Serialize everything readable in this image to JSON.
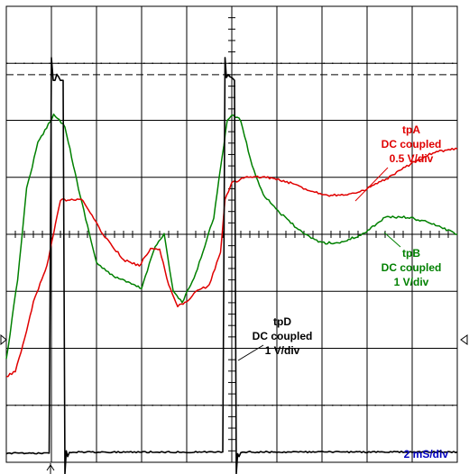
{
  "chart_data": {
    "type": "line",
    "title": "",
    "xlabel": "",
    "ylabel": "",
    "timebase": "2 mS/div",
    "divisions": {
      "x": 10,
      "y": 8
    },
    "xlim": [
      0,
      10
    ],
    "ylim": [
      -4,
      4
    ],
    "grid": true,
    "ground_markers": [
      "left",
      "right"
    ],
    "trigger_marker": "bottom",
    "dashed_cursor_level": 2.8,
    "series": [
      {
        "name": "tpA",
        "label_lines": [
          "tpA",
          "DC coupled",
          "0.5 V/div"
        ],
        "color": "#e00000",
        "x": [
          0,
          0.2,
          0.45,
          0.6,
          0.9,
          1.2,
          1.7,
          2.1,
          2.6,
          2.95,
          3.2,
          3.4,
          3.6,
          3.8,
          4.0,
          4.2,
          4.5,
          4.75,
          4.85,
          5.0,
          5.3,
          5.8,
          6.3,
          6.8,
          7.2,
          7.8,
          8.5,
          9.0,
          9.5,
          10.0
        ],
        "y": [
          -2.5,
          -2.4,
          -1.7,
          -1.2,
          -0.55,
          0.6,
          0.6,
          0.05,
          -0.45,
          -0.55,
          -0.25,
          -0.25,
          -0.9,
          -1.25,
          -1.2,
          -1.0,
          -0.9,
          -0.3,
          0.6,
          0.9,
          1.0,
          1.0,
          0.9,
          0.75,
          0.68,
          0.72,
          1.0,
          1.25,
          1.45,
          1.5
        ]
      },
      {
        "name": "tpB",
        "label_lines": [
          "tpB",
          "DC coupled",
          "1 V/div"
        ],
        "color": "#008000",
        "x": [
          0,
          0.25,
          0.45,
          0.7,
          1.05,
          1.3,
          1.6,
          2.0,
          2.3,
          2.7,
          3.0,
          3.3,
          3.5,
          3.7,
          3.9,
          4.2,
          4.6,
          4.9,
          5.0,
          5.2,
          5.45,
          5.7,
          6.1,
          6.6,
          7.0,
          7.4,
          7.9,
          8.4,
          8.9,
          9.4,
          10.0
        ],
        "y": [
          -2.2,
          -0.8,
          0.8,
          1.6,
          2.1,
          1.9,
          0.8,
          -0.5,
          -0.7,
          -0.85,
          -0.95,
          -0.2,
          0.0,
          -1.0,
          -1.2,
          -0.7,
          0.3,
          2.0,
          2.1,
          2.0,
          1.2,
          0.7,
          0.35,
          0.0,
          -0.15,
          -0.15,
          0.0,
          0.3,
          0.3,
          0.2,
          0.0
        ]
      },
      {
        "name": "tpD",
        "label_lines": [
          "tpD",
          "DC coupled",
          "1 V/div"
        ],
        "color": "#000000",
        "x": [
          0,
          0.95,
          1.0,
          1.04,
          1.08,
          1.12,
          1.2,
          1.26,
          1.3,
          1.33,
          1.36,
          1.4,
          4.8,
          4.85,
          4.88,
          4.92,
          5.0,
          5.06,
          5.1,
          5.13,
          5.16,
          5.2,
          10.0
        ],
        "y": [
          -3.84,
          -3.84,
          3.1,
          2.7,
          2.7,
          2.8,
          2.7,
          2.7,
          -4.2,
          -3.8,
          -3.9,
          -3.82,
          -3.82,
          3.1,
          2.75,
          2.8,
          2.75,
          2.7,
          -4.2,
          -3.85,
          -3.9,
          -3.82,
          -3.82
        ]
      }
    ]
  }
}
